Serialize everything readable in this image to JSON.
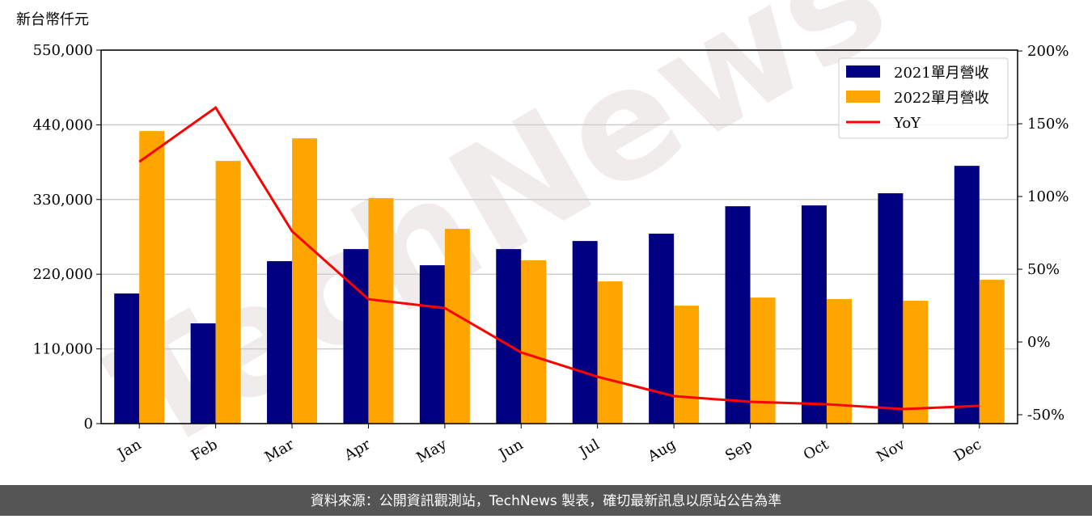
{
  "chart_data": {
    "type": "bar-line",
    "y_axis_label": "新台幣仟元",
    "watermark": "TechNews",
    "footer": "資料來源：公開資訊觀測站，TechNews 製表，確切最新訊息以原站公告為準",
    "categories": [
      "Jan",
      "Feb",
      "Mar",
      "Apr",
      "May",
      "Jun",
      "Jul",
      "Aug",
      "Sep",
      "Oct",
      "Nov",
      "Dec"
    ],
    "series": [
      {
        "name": "2021單月營收",
        "color": "#000080",
        "type": "bar",
        "values": [
          191600,
          147600,
          239200,
          257000,
          233200,
          257000,
          268900,
          279700,
          320100,
          321300,
          339200,
          379600
        ]
      },
      {
        "name": "2022單月營收",
        "color": "#ffa500",
        "type": "bar",
        "values": [
          430800,
          386800,
          420100,
          332000,
          286800,
          240400,
          209400,
          173700,
          185600,
          183300,
          180900,
          211800
        ]
      },
      {
        "name": "YoY",
        "color": "#ff0000",
        "type": "line",
        "axis": "y2",
        "values": [
          123.9,
          161.1,
          76.1,
          29.4,
          23.3,
          -7.2,
          -23.9,
          -37.2,
          -41.1,
          -42.8,
          -46.1,
          -43.9
        ]
      }
    ],
    "ylim": [
      0,
      550000
    ],
    "yticks": [
      0,
      {
        "value": 110000,
        "label": "110,000"
      },
      {
        "value": 220000,
        "label": "220,000"
      },
      {
        "value": 330000,
        "label": "330,000"
      },
      {
        "value": 440000,
        "label": "440,000"
      },
      {
        "value": 550000,
        "label": "550,000"
      }
    ],
    "y2lim": [
      -56.1,
      200.6
    ],
    "y2ticks": [
      {
        "value": -50,
        "label": "-50%"
      },
      {
        "value": 0,
        "label": "0%"
      },
      {
        "value": 50,
        "label": "50%"
      },
      {
        "value": 100,
        "label": "100%"
      },
      {
        "value": 150,
        "label": "150%"
      },
      {
        "value": 200,
        "label": "200%"
      }
    ],
    "grid": true,
    "legend": "upper right"
  }
}
